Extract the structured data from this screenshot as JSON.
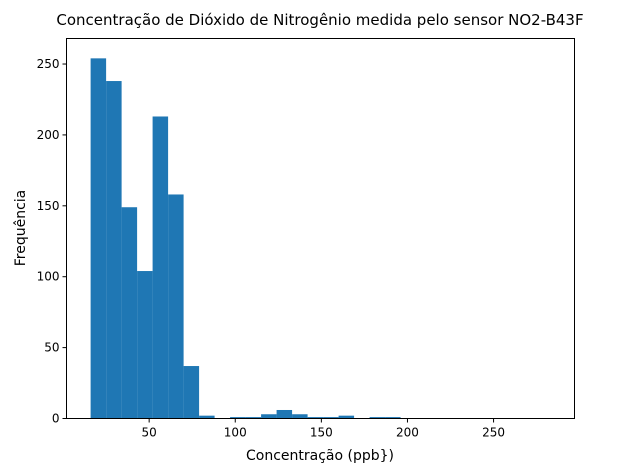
{
  "chart_data": {
    "type": "bar",
    "title": "Concentração de Dióxido de Nitrogênio medida pelo sensor NO2-B43F",
    "xlabel": "Concentração (ppb})",
    "ylabel": "Frequência",
    "xlim": [
      2,
      297
    ],
    "ylim": [
      0,
      268
    ],
    "x_ticks": [
      50,
      100,
      150,
      200,
      250
    ],
    "y_ticks": [
      0,
      50,
      100,
      150,
      200,
      250
    ],
    "bar_color": "#1f77b4",
    "grid": false,
    "legend": "none",
    "bins": [
      {
        "start": 16,
        "end": 25,
        "count": 254
      },
      {
        "start": 25,
        "end": 34,
        "count": 238
      },
      {
        "start": 34,
        "end": 43,
        "count": 149
      },
      {
        "start": 43,
        "end": 52,
        "count": 104
      },
      {
        "start": 52,
        "end": 61,
        "count": 213
      },
      {
        "start": 61,
        "end": 70,
        "count": 158
      },
      {
        "start": 70,
        "end": 79,
        "count": 37
      },
      {
        "start": 79,
        "end": 88,
        "count": 2
      },
      {
        "start": 88,
        "end": 97,
        "count": 0
      },
      {
        "start": 97,
        "end": 106,
        "count": 1
      },
      {
        "start": 106,
        "end": 115,
        "count": 1
      },
      {
        "start": 115,
        "end": 124,
        "count": 3
      },
      {
        "start": 124,
        "end": 133,
        "count": 6
      },
      {
        "start": 133,
        "end": 142,
        "count": 3
      },
      {
        "start": 142,
        "end": 151,
        "count": 1
      },
      {
        "start": 151,
        "end": 160,
        "count": 1
      },
      {
        "start": 160,
        "end": 169,
        "count": 2
      },
      {
        "start": 169,
        "end": 178,
        "count": 0
      },
      {
        "start": 178,
        "end": 187,
        "count": 1
      },
      {
        "start": 187,
        "end": 196,
        "count": 1
      }
    ]
  }
}
